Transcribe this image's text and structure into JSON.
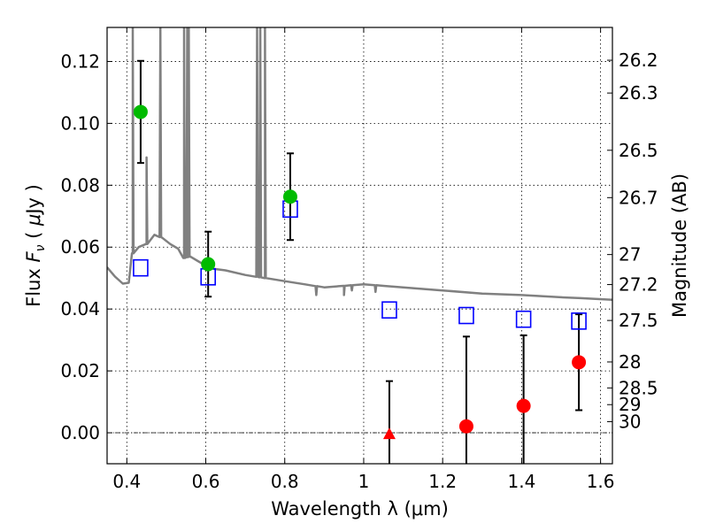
{
  "chart_data": {
    "type": "scatter",
    "title": "",
    "xlabel": "Wavelength  λ (μm)",
    "ylabel": "Flux  F_ν  ( μJy )",
    "ylabel_parts": {
      "prefix": "Flux ",
      "var": "F",
      "sub": "ν",
      "unit_open": "  ( ",
      "mu": "μ",
      "unit_close": "Jy )"
    },
    "ylabel_right": "Magnitude (AB)",
    "xlim": [
      0.35,
      1.63
    ],
    "ylim": [
      -0.01,
      0.131
    ],
    "grid": true,
    "x_ticks": [
      0.4,
      0.6,
      0.8,
      1.0,
      1.2,
      1.4,
      1.6
    ],
    "x_tick_labels": [
      "0.4",
      "0.6",
      "0.8",
      "1",
      "1.2",
      "1.4",
      "1.6"
    ],
    "y_ticks": [
      0.0,
      0.02,
      0.04,
      0.06,
      0.08,
      0.1,
      0.12
    ],
    "y_tick_labels": [
      "0.00",
      "0.02",
      "0.04",
      "0.06",
      "0.08",
      "0.10",
      "0.12"
    ],
    "right_ticks": [
      {
        "label": "26.2",
        "flux": 0.1204
      },
      {
        "label": "26.3",
        "flux": 0.1098
      },
      {
        "label": "26.5",
        "flux": 0.0913
      },
      {
        "label": "26.7",
        "flux": 0.076
      },
      {
        "label": "27",
        "flux": 0.0576
      },
      {
        "label": "27.2",
        "flux": 0.0479
      },
      {
        "label": "27.5",
        "flux": 0.0363
      },
      {
        "label": "28",
        "flux": 0.0229
      },
      {
        "label": "28.5",
        "flux": 0.0145
      },
      {
        "label": "29",
        "flux": 0.0091
      },
      {
        "label": "30",
        "flux": 0.0036
      }
    ],
    "colors": {
      "spectrum": "#808080",
      "model": "#0000ff",
      "detected": "#00bb00",
      "non_detected": "#ff0000",
      "errorbar": "#000000",
      "zero_line": "#000000"
    },
    "series": [
      {
        "kind": "model-photometry",
        "marker": "open-square",
        "points": [
          {
            "x": 0.435,
            "y": 0.0533
          },
          {
            "x": 0.606,
            "y": 0.0504
          },
          {
            "x": 0.814,
            "y": 0.0723
          },
          {
            "x": 1.065,
            "y": 0.0397
          },
          {
            "x": 1.26,
            "y": 0.0379
          },
          {
            "x": 1.405,
            "y": 0.0367
          },
          {
            "x": 1.545,
            "y": 0.0361
          }
        ]
      },
      {
        "kind": "detected",
        "marker": "filled-circle",
        "points": [
          {
            "x": 0.435,
            "y": 0.1037,
            "err": 0.0165
          },
          {
            "x": 0.606,
            "y": 0.0545,
            "err": 0.0105
          },
          {
            "x": 0.814,
            "y": 0.0763,
            "err": 0.014
          }
        ]
      },
      {
        "kind": "non-detected",
        "marker": "filled-circle",
        "points": [
          {
            "x": 1.26,
            "y": 0.0021,
            "err": 0.029
          },
          {
            "x": 1.405,
            "y": 0.0087,
            "err": 0.0228
          },
          {
            "x": 1.545,
            "y": 0.0228,
            "err": 0.0155
          }
        ]
      },
      {
        "kind": "non-detected",
        "marker": "filled-triangle",
        "points": [
          {
            "x": 1.065,
            "y": -0.0003,
            "err": 0.017
          }
        ]
      }
    ],
    "spectrum": {
      "continuum": [
        [
          0.35,
          0.0535
        ],
        [
          0.37,
          0.0505
        ],
        [
          0.39,
          0.0482
        ],
        [
          0.405,
          0.0485
        ],
        [
          0.415,
          0.058
        ],
        [
          0.43,
          0.06
        ],
        [
          0.45,
          0.061
        ],
        [
          0.47,
          0.064
        ],
        [
          0.49,
          0.063
        ],
        [
          0.51,
          0.061
        ],
        [
          0.53,
          0.0595
        ],
        [
          0.545,
          0.0565
        ],
        [
          0.56,
          0.057
        ],
        [
          0.58,
          0.0555
        ],
        [
          0.6,
          0.054
        ],
        [
          0.62,
          0.053
        ],
        [
          0.65,
          0.0525
        ],
        [
          0.7,
          0.051
        ],
        [
          0.75,
          0.05
        ],
        [
          0.8,
          0.049
        ],
        [
          0.85,
          0.048
        ],
        [
          0.9,
          0.047
        ],
        [
          0.95,
          0.0475
        ],
        [
          1.0,
          0.048
        ],
        [
          1.05,
          0.0475
        ],
        [
          1.1,
          0.047
        ],
        [
          1.15,
          0.0465
        ],
        [
          1.2,
          0.046
        ],
        [
          1.3,
          0.045
        ],
        [
          1.4,
          0.0445
        ],
        [
          1.5,
          0.0438
        ],
        [
          1.55,
          0.0435
        ],
        [
          1.63,
          0.043
        ]
      ],
      "emission_lines": [
        {
          "x": 0.415,
          "peak": 0.131
        },
        {
          "x": 0.45,
          "peak": 0.089
        },
        {
          "x": 0.485,
          "peak": 0.131
        },
        {
          "x": 0.545,
          "peak": 0.131
        },
        {
          "x": 0.553,
          "peak": 0.131
        },
        {
          "x": 0.557,
          "peak": 0.131
        },
        {
          "x": 0.73,
          "peak": 0.131
        },
        {
          "x": 0.738,
          "peak": 0.131
        },
        {
          "x": 0.75,
          "peak": 0.131
        }
      ],
      "absorption_dips": [
        {
          "x": 0.88,
          "depth": 0.0445
        },
        {
          "x": 0.95,
          "depth": 0.0445
        },
        {
          "x": 0.97,
          "depth": 0.046
        },
        {
          "x": 1.03,
          "depth": 0.0455
        }
      ]
    }
  }
}
